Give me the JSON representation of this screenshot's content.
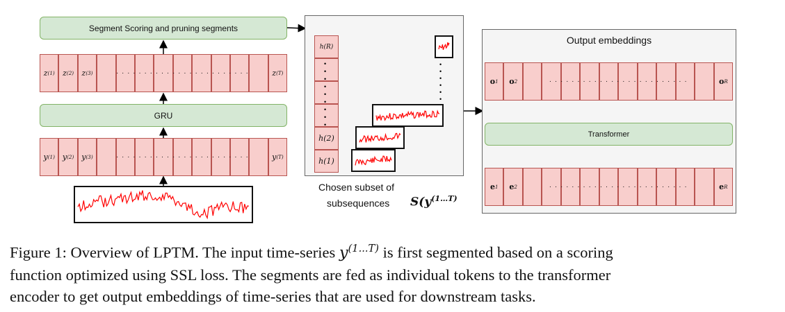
{
  "left": {
    "scoring_label": "Segment Scoring and pruning segments",
    "gru_label": "GRU",
    "z_cells": [
      "z",
      "z",
      "z",
      "z"
    ],
    "z_sups": [
      "(1)",
      "(2)",
      "(3)",
      "(T)"
    ],
    "y_cells": [
      "y",
      "y",
      "y",
      "y"
    ],
    "y_sups": [
      "(1)",
      "(2)",
      "(3)",
      "(T)"
    ],
    "dots": "· · · · · · · · · · · · · · · · · · · · · · · ·"
  },
  "middle": {
    "h_labels": [
      "h(R)",
      "h(2)",
      "h(1)"
    ],
    "vdots": "•",
    "caption_line1": "Chosen subset of",
    "caption_line2": "subsequences",
    "math_S": "S(y",
    "math_sup": "(1…T)"
  },
  "right": {
    "title": "Output embeddings",
    "transformer_label": "Transformer",
    "o_cells": [
      "o",
      "o",
      "o"
    ],
    "o_subs": [
      "1",
      "2",
      "R"
    ],
    "e_cells": [
      "e",
      "e",
      "e"
    ],
    "e_subs": [
      "1",
      "2",
      "R"
    ],
    "dots": "· · · · · · · · · · · · · · · · · · · · · · · · ·"
  },
  "caption": {
    "line1_a": "Figure 1: Overview of LPTM. The input time-series ",
    "line1_math": "y",
    "line1_sup": "(1...T)",
    "line1_b": " is first segmented based on a scoring",
    "line2": "function optimized using SSL loss. The segments are fed as individual tokens to the transformer",
    "line3": "encoder to get output embeddings of time-series that are used for downstream tasks."
  },
  "colors": {
    "cell_fill": "#f8cecc",
    "cell_border": "#b85450",
    "block_fill": "#d5e8d4",
    "block_border": "#82b366",
    "series": "#ff0000"
  }
}
